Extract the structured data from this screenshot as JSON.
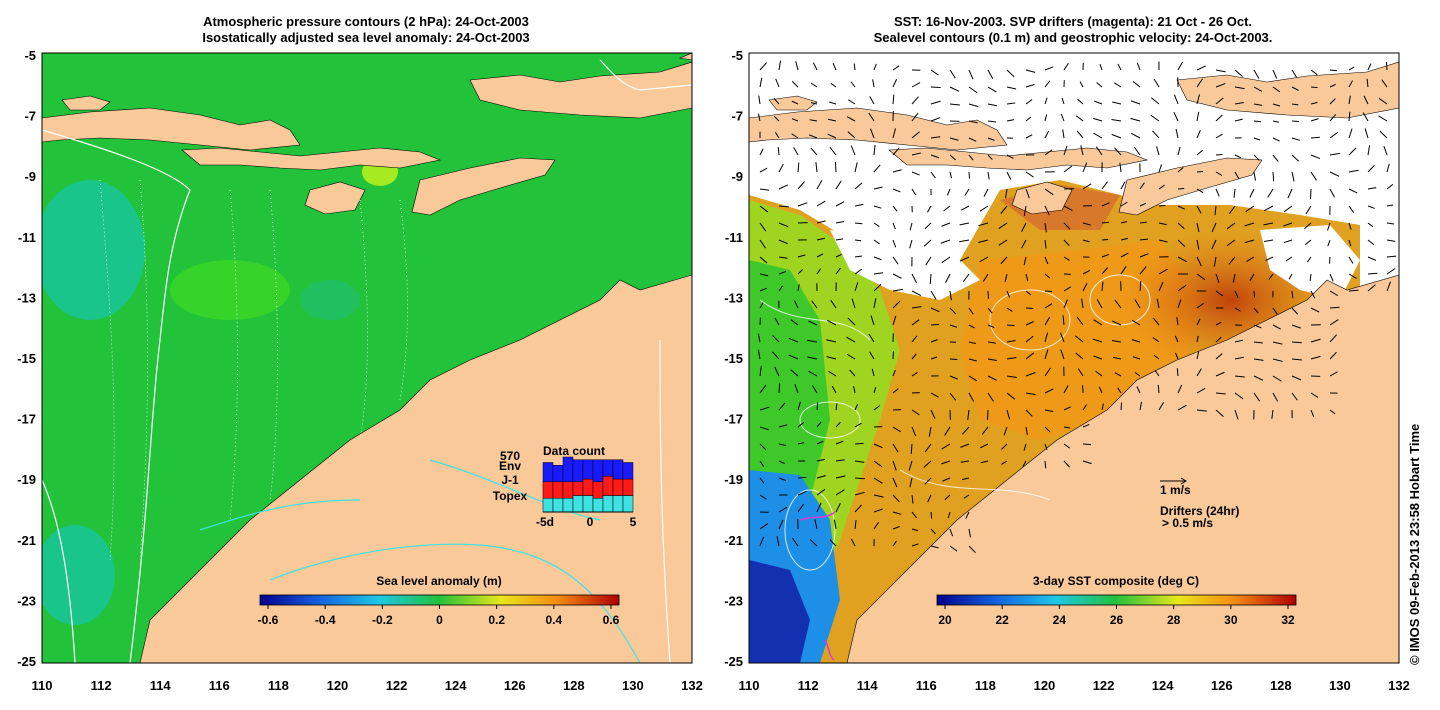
{
  "left_panel": {
    "title_line1": "Atmospheric pressure contours (2 hPa): 24-Oct-2003",
    "title_line2": "Isostatically adjusted sea level anomaly: 24-Oct-2003",
    "colorbar": {
      "label": "Sea level anomaly (m)",
      "ticks": [
        "-0.6",
        "-0.4",
        "-0.2",
        "0",
        "0.2",
        "0.4",
        "0.6"
      ]
    },
    "data_count": {
      "title": "Data count",
      "total": "570",
      "legend": [
        "Env",
        "J-1",
        "Topex"
      ],
      "xticks": [
        "-5d",
        "0",
        "5"
      ]
    }
  },
  "right_panel": {
    "title_line1": "SST: 16-Nov-2003. SVP drifters (magenta): 21 Oct - 26 Oct.",
    "title_line2": "Sealevel contours (0.1 m) and geostrophic velocity: 24-Oct-2003.",
    "colorbar": {
      "label": "3-day SST composite (deg C)",
      "ticks": [
        "20",
        "22",
        "24",
        "26",
        "28",
        "30",
        "32"
      ]
    },
    "velocity_key": "1 m/s",
    "drifters_label": "Drifters (24hr)",
    "drifters_speed": "> 0.5 m/s"
  },
  "axes": {
    "lat_ticks": [
      "-5",
      "-7",
      "-9",
      "-11",
      "-13",
      "-15",
      "-17",
      "-19",
      "-21",
      "-23",
      "-25"
    ],
    "lon_ticks": [
      "110",
      "112",
      "114",
      "116",
      "118",
      "120",
      "122",
      "124",
      "126",
      "128",
      "130",
      "132"
    ]
  },
  "credit": "© IMOS 09-Feb-2013 23:58 Hobart Time",
  "colors": {
    "land": "#f9c99a",
    "sea_left": "#22c23a",
    "contour_cyan": "#3fe2e2",
    "drifter": "#d23fd2"
  }
}
